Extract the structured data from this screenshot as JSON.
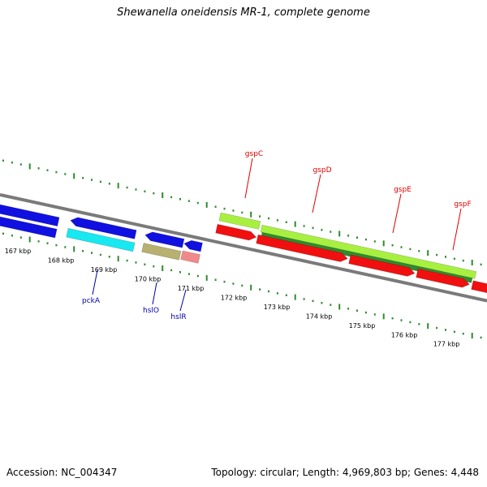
{
  "title": "Shewanella oneidensis MR-1, complete genome",
  "footer": {
    "accession": "Accession: NC_004347",
    "summary": "Topology: circular; Length: 4,969,803 bp; Genes: 4,448"
  },
  "colors": {
    "backbone": "#7a7a7a",
    "tick": "#2e8b2e",
    "blue_gene": "#1010e0",
    "cyan_gene": "#18e8f0",
    "olive_gene": "#b8b070",
    "pink_gene": "#f08a8a",
    "lime_gene": "#a8f040",
    "green_gene": "#2e8b2e",
    "red_gene": "#f01010",
    "label_blue": "#0000aa",
    "label_red": "#dd0000"
  },
  "ticks": [
    {
      "label": "167 kbp"
    },
    {
      "label": "168 kbp"
    },
    {
      "label": "169 kbp"
    },
    {
      "label": "170 kbp"
    },
    {
      "label": "171 kbp"
    },
    {
      "label": "172 kbp"
    },
    {
      "label": "173 kbp"
    },
    {
      "label": "174 kbp"
    },
    {
      "label": "175 kbp"
    },
    {
      "label": "176 kbp"
    },
    {
      "label": "177 kbp"
    }
  ],
  "gene_labels": [
    {
      "name": "pckA",
      "color": "label_blue"
    },
    {
      "name": "hslO",
      "color": "label_blue"
    },
    {
      "name": "hslR",
      "color": "label_blue"
    },
    {
      "name": "gspC",
      "color": "label_red"
    },
    {
      "name": "gspD",
      "color": "label_red"
    },
    {
      "name": "gspE",
      "color": "label_red"
    },
    {
      "name": "gspF",
      "color": "label_red"
    }
  ]
}
